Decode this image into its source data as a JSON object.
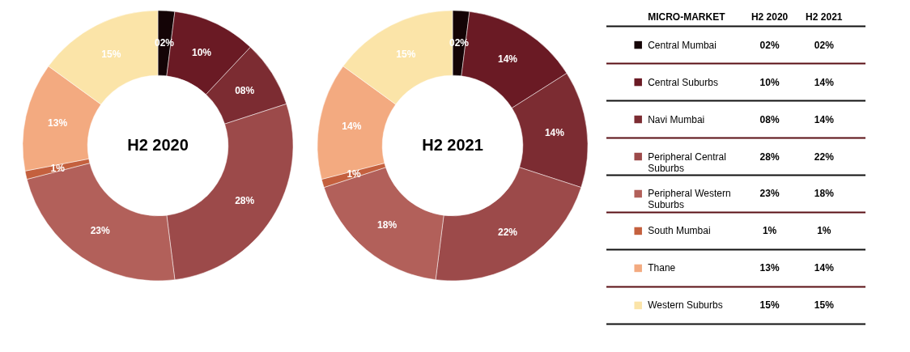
{
  "chart_data": {
    "type": "donut",
    "legend": "right",
    "legend_title": "MICRO-MARKET",
    "categories": [
      "Central Mumbai",
      "Central Suburbs",
      "Navi Mumbai",
      "Peripheral Central Suburbs",
      "Peripheral Western Suburbs",
      "South Mumbai",
      "Thane",
      "Western Suburbs"
    ],
    "colors": [
      "#140406",
      "#6a1a24",
      "#7c2c32",
      "#9c4a4a",
      "#b2605a",
      "#c4603e",
      "#f3aa80",
      "#fbe4a8"
    ],
    "series": [
      {
        "name": "H2 2020",
        "values": [
          2,
          10,
          8,
          28,
          23,
          1,
          13,
          15
        ],
        "value_labels": [
          "02%",
          "10%",
          "08%",
          "28%",
          "23%",
          "1%",
          "13%",
          "15%"
        ]
      },
      {
        "name": "H2 2021",
        "values": [
          2,
          14,
          14,
          22,
          18,
          1,
          14,
          15
        ],
        "value_labels": [
          "02%",
          "14%",
          "14%",
          "22%",
          "18%",
          "1%",
          "14%",
          "15%"
        ]
      }
    ]
  }
}
